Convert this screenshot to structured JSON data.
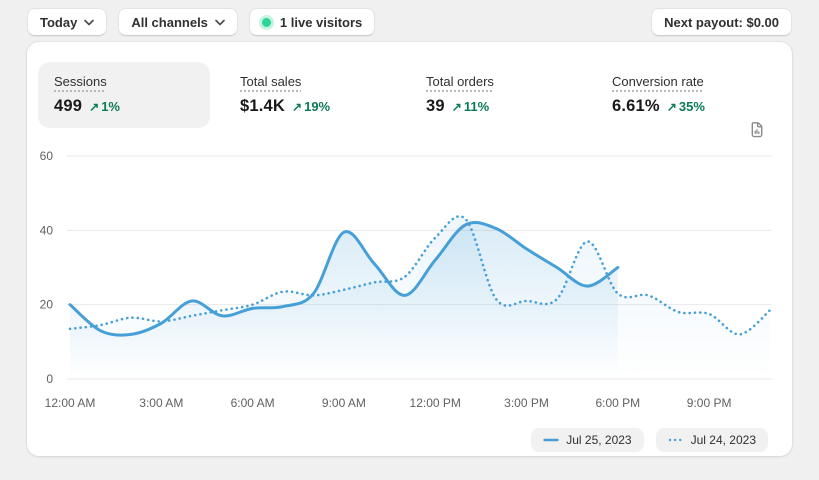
{
  "topbar": {
    "date_range_button": "Today",
    "channels_button": "All channels",
    "live_visitors": "1 live visitors",
    "next_payout_button": "Next payout: $0.00"
  },
  "metrics": [
    {
      "label": "Sessions",
      "value": "499",
      "delta": "1%",
      "active": true
    },
    {
      "label": "Total sales",
      "value": "$1.4K",
      "delta": "19%",
      "active": false
    },
    {
      "label": "Total orders",
      "value": "39",
      "delta": "11%",
      "active": false
    },
    {
      "label": "Conversion rate",
      "value": "6.61%",
      "delta": "35%",
      "active": false
    }
  ],
  "icons": {
    "trend_up_arrow": "↗",
    "chevron_down": "chevron-down",
    "live_dot": "green-pulse-dot",
    "export_report": "document-with-bar-chart"
  },
  "colors": {
    "line_blue": "#46a0d7",
    "success_green": "#0a7b55",
    "live_dot_green": "#2bd596",
    "page_bg": "#f0f0f0",
    "card_bg": "#ffffff",
    "tab_active_bg": "#f1f1f1",
    "gridline": "#e9e9e9",
    "axis_text": "#616161"
  },
  "chart_data": {
    "type": "line",
    "x_unit": "hour_of_day",
    "xlim": [
      0,
      23
    ],
    "ylim": [
      0,
      60
    ],
    "y_ticks": [
      0,
      20,
      40,
      60
    ],
    "x_ticks": [
      {
        "h": 0,
        "label": "12:00 AM"
      },
      {
        "h": 3,
        "label": "3:00 AM"
      },
      {
        "h": 6,
        "label": "6:00 AM"
      },
      {
        "h": 9,
        "label": "9:00 AM"
      },
      {
        "h": 12,
        "label": "12:00 PM"
      },
      {
        "h": 15,
        "label": "3:00 PM"
      },
      {
        "h": 18,
        "label": "6:00 PM"
      },
      {
        "h": 21,
        "label": "9:00 PM"
      }
    ],
    "grid": "horizontal",
    "legend_position": "bottom-right",
    "series": [
      {
        "name": "Jul 25, 2023",
        "style": "solid",
        "color": "#46a0d7",
        "x": [
          0,
          1,
          2,
          3,
          4,
          5,
          6,
          7,
          8,
          9,
          10,
          11,
          12,
          13,
          14,
          15,
          16,
          17,
          18
        ],
        "values": [
          20,
          13,
          12,
          15,
          21,
          17,
          19,
          19.5,
          23,
          39.5,
          31,
          22.5,
          32,
          41.5,
          40.5,
          35,
          30,
          25,
          30
        ]
      },
      {
        "name": "Jul 24, 2023",
        "style": "dotted",
        "color": "#46a0d7",
        "x": [
          0,
          1,
          2,
          3,
          4,
          5,
          6,
          7,
          8,
          9,
          10,
          11,
          12,
          13,
          14,
          15,
          16,
          17,
          18,
          19,
          20,
          21,
          22,
          23
        ],
        "values": [
          13.5,
          14.5,
          16.5,
          15.5,
          17,
          18.5,
          20,
          23.5,
          22.5,
          24,
          26,
          27.5,
          38,
          43,
          21.5,
          21,
          21.5,
          37,
          23,
          22.5,
          18,
          17.5,
          12,
          18.5
        ]
      }
    ]
  }
}
